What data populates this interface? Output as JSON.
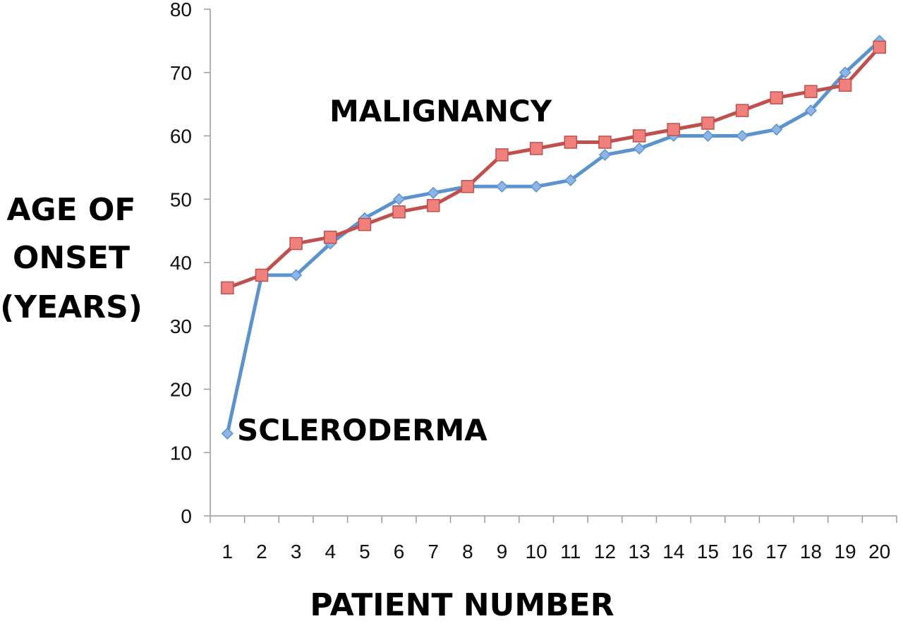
{
  "chart_data": {
    "type": "line",
    "xlabel": "PATIENT NUMBER",
    "ylabel_lines": [
      "AGE OF",
      "ONSET",
      "(YEARS)"
    ],
    "ylim": [
      0,
      80
    ],
    "yticks": [
      0,
      10,
      20,
      30,
      40,
      50,
      60,
      70,
      80
    ],
    "categories": [
      "1",
      "2",
      "3",
      "4",
      "5",
      "6",
      "7",
      "8",
      "9",
      "10",
      "11",
      "12",
      "13",
      "14",
      "15",
      "16",
      "17",
      "18",
      "19",
      "20"
    ],
    "grid": false,
    "series": [
      {
        "name": "SCLERODERMA",
        "color": "#5b93cf",
        "marker": "diamond",
        "values": [
          13,
          38,
          38,
          43,
          47,
          50,
          51,
          52,
          52,
          52,
          53,
          57,
          58,
          60,
          60,
          60,
          61,
          64,
          70,
          75
        ]
      },
      {
        "name": "MALIGNANCY",
        "color": "#c0504d",
        "marker": "square",
        "values": [
          36,
          38,
          43,
          44,
          46,
          48,
          49,
          52,
          57,
          58,
          59,
          59,
          60,
          61,
          62,
          64,
          66,
          67,
          68,
          74
        ]
      }
    ]
  }
}
